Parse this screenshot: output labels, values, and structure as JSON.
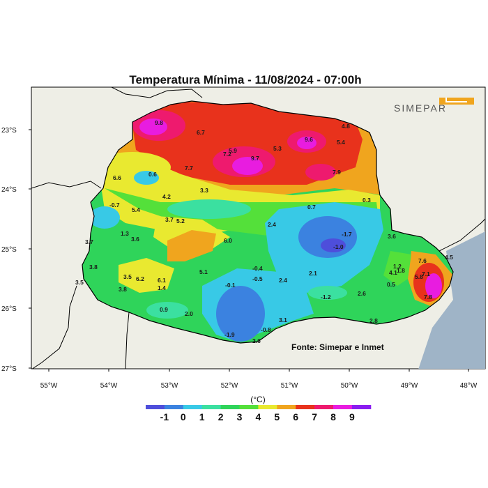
{
  "title": "Temperatura Mínima - 11/08/2024 - 07:00h",
  "logo_text": "SIMEPAR",
  "source": "Fonte: Simepar e Inmet",
  "unit": "(°C)",
  "lat_labels": [
    "23°S",
    "24°S",
    "25°S",
    "26°S",
    "27°S"
  ],
  "lon_labels": [
    "55°W",
    "54°W",
    "53°W",
    "52°W",
    "51°W",
    "50°W",
    "49°W",
    "48°W"
  ],
  "colorbar": {
    "labels": [
      "-1",
      "0",
      "1",
      "2",
      "3",
      "4",
      "5",
      "6",
      "7",
      "8",
      "9"
    ],
    "colors": [
      "#4e4edb",
      "#3b82e0",
      "#38c9e6",
      "#3be0a0",
      "#2fd45a",
      "#54e03a",
      "#e9e930",
      "#f0a51e",
      "#e8321c",
      "#ee1a6e",
      "#e81ce0",
      "#8a1cf0"
    ]
  },
  "colors": {
    "land_outside": "#eeeee6",
    "ocean": "#9fb4c7",
    "border": "#000000"
  },
  "stations": [
    {
      "value": "9.8"
    },
    {
      "value": "6.7"
    },
    {
      "value": "7.2"
    },
    {
      "value": "5.9"
    },
    {
      "value": "9.7"
    },
    {
      "value": "5.3"
    },
    {
      "value": "9.6"
    },
    {
      "value": "4.8"
    },
    {
      "value": "5.4"
    },
    {
      "value": "7.9"
    },
    {
      "value": "7.7"
    },
    {
      "value": "0.6"
    },
    {
      "value": "6.6"
    },
    {
      "value": "4.2"
    },
    {
      "value": "3.3"
    },
    {
      "value": "-0.7"
    },
    {
      "value": "5.4"
    },
    {
      "value": "3.7"
    },
    {
      "value": "5.2"
    },
    {
      "value": "0.7"
    },
    {
      "value": "0.3"
    },
    {
      "value": "2.4"
    },
    {
      "value": "1.3"
    },
    {
      "value": "3.6"
    },
    {
      "value": "3.7"
    },
    {
      "value": "6.0"
    },
    {
      "value": "-1.7"
    },
    {
      "value": "-1.0"
    },
    {
      "value": "3.6"
    },
    {
      "value": "3.8"
    },
    {
      "value": "5.1"
    },
    {
      "value": "-0.4"
    },
    {
      "value": "3.5"
    },
    {
      "value": "6.2"
    },
    {
      "value": "6.1"
    },
    {
      "value": "-0.5"
    },
    {
      "value": "2.4"
    },
    {
      "value": "2.1"
    },
    {
      "value": "3.5"
    },
    {
      "value": "3.8"
    },
    {
      "value": "1.4"
    },
    {
      "value": "-0.1"
    },
    {
      "value": "7.6"
    },
    {
      "value": "1.2"
    },
    {
      "value": "4.1"
    },
    {
      "value": "1.8"
    },
    {
      "value": "4.5"
    },
    {
      "value": "5.8"
    },
    {
      "value": "7.1"
    },
    {
      "value": "0.5"
    },
    {
      "value": "2.6"
    },
    {
      "value": "-1.2"
    },
    {
      "value": "0.9"
    },
    {
      "value": "2.0"
    },
    {
      "value": "3.1"
    },
    {
      "value": "7.8"
    },
    {
      "value": "-1.9"
    },
    {
      "value": "-0.8"
    },
    {
      "value": "2.6"
    },
    {
      "value": "2.8"
    }
  ]
}
